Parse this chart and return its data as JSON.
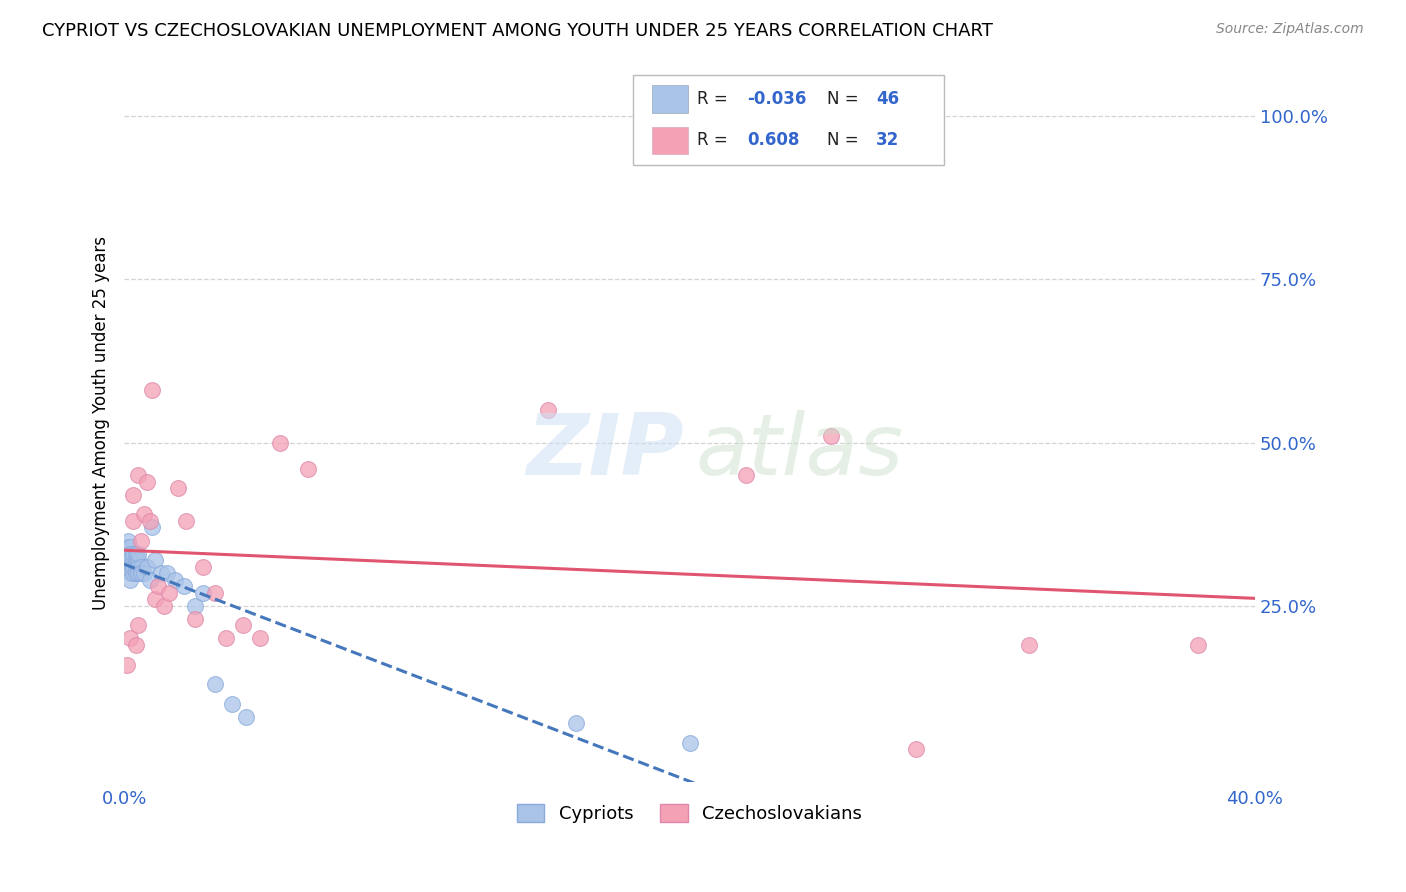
{
  "title": "CYPRIOT VS CZECHOSLOVAKIAN UNEMPLOYMENT AMONG YOUTH UNDER 25 YEARS CORRELATION CHART",
  "source": "Source: ZipAtlas.com",
  "ylabel": "Unemployment Among Youth under 25 years",
  "background_color": "#ffffff",
  "grid_color": "#d0d0d0",
  "cypriot_color": "#aac4e8",
  "czechoslovakian_color": "#f4a0b5",
  "cypriot_line_color": "#4477bb",
  "czechoslovakian_line_color": "#e05570",
  "legend_text_color": "#3366cc",
  "cypriot_R": -0.036,
  "cypriot_N": 46,
  "czechoslovakian_R": 0.608,
  "czechoslovakian_N": 32,
  "xlim": [
    0.0,
    0.4
  ],
  "ylim": [
    0.0,
    1.0
  ],
  "cypriot_x": [
    0.0005,
    0.001,
    0.001,
    0.001,
    0.0015,
    0.0015,
    0.0015,
    0.0015,
    0.002,
    0.002,
    0.002,
    0.002,
    0.002,
    0.002,
    0.003,
    0.003,
    0.003,
    0.003,
    0.003,
    0.004,
    0.004,
    0.004,
    0.004,
    0.005,
    0.005,
    0.005,
    0.005,
    0.006,
    0.006,
    0.006,
    0.007,
    0.008,
    0.009,
    0.01,
    0.011,
    0.013,
    0.015,
    0.018,
    0.021,
    0.025,
    0.028,
    0.032,
    0.038,
    0.043,
    0.16,
    0.2
  ],
  "cypriot_y": [
    0.33,
    0.33,
    0.34,
    0.32,
    0.33,
    0.32,
    0.31,
    0.35,
    0.34,
    0.33,
    0.32,
    0.31,
    0.3,
    0.29,
    0.31,
    0.32,
    0.33,
    0.3,
    0.31,
    0.32,
    0.33,
    0.31,
    0.3,
    0.32,
    0.31,
    0.3,
    0.33,
    0.3,
    0.31,
    0.3,
    0.3,
    0.31,
    0.29,
    0.37,
    0.32,
    0.3,
    0.3,
    0.29,
    0.28,
    0.25,
    0.27,
    0.13,
    0.1,
    0.08,
    0.07,
    0.04
  ],
  "czechoslovakian_x": [
    0.001,
    0.002,
    0.003,
    0.003,
    0.004,
    0.005,
    0.005,
    0.006,
    0.007,
    0.008,
    0.009,
    0.01,
    0.011,
    0.012,
    0.014,
    0.016,
    0.019,
    0.022,
    0.025,
    0.028,
    0.032,
    0.036,
    0.042,
    0.048,
    0.055,
    0.065,
    0.15,
    0.22,
    0.25,
    0.28,
    0.32,
    0.38
  ],
  "czechoslovakian_y": [
    0.16,
    0.2,
    0.42,
    0.38,
    0.19,
    0.22,
    0.45,
    0.35,
    0.39,
    0.44,
    0.38,
    0.58,
    0.26,
    0.28,
    0.25,
    0.27,
    0.43,
    0.38,
    0.23,
    0.31,
    0.27,
    0.2,
    0.22,
    0.2,
    0.5,
    0.46,
    0.55,
    0.45,
    0.51,
    0.03,
    0.19,
    0.19
  ]
}
